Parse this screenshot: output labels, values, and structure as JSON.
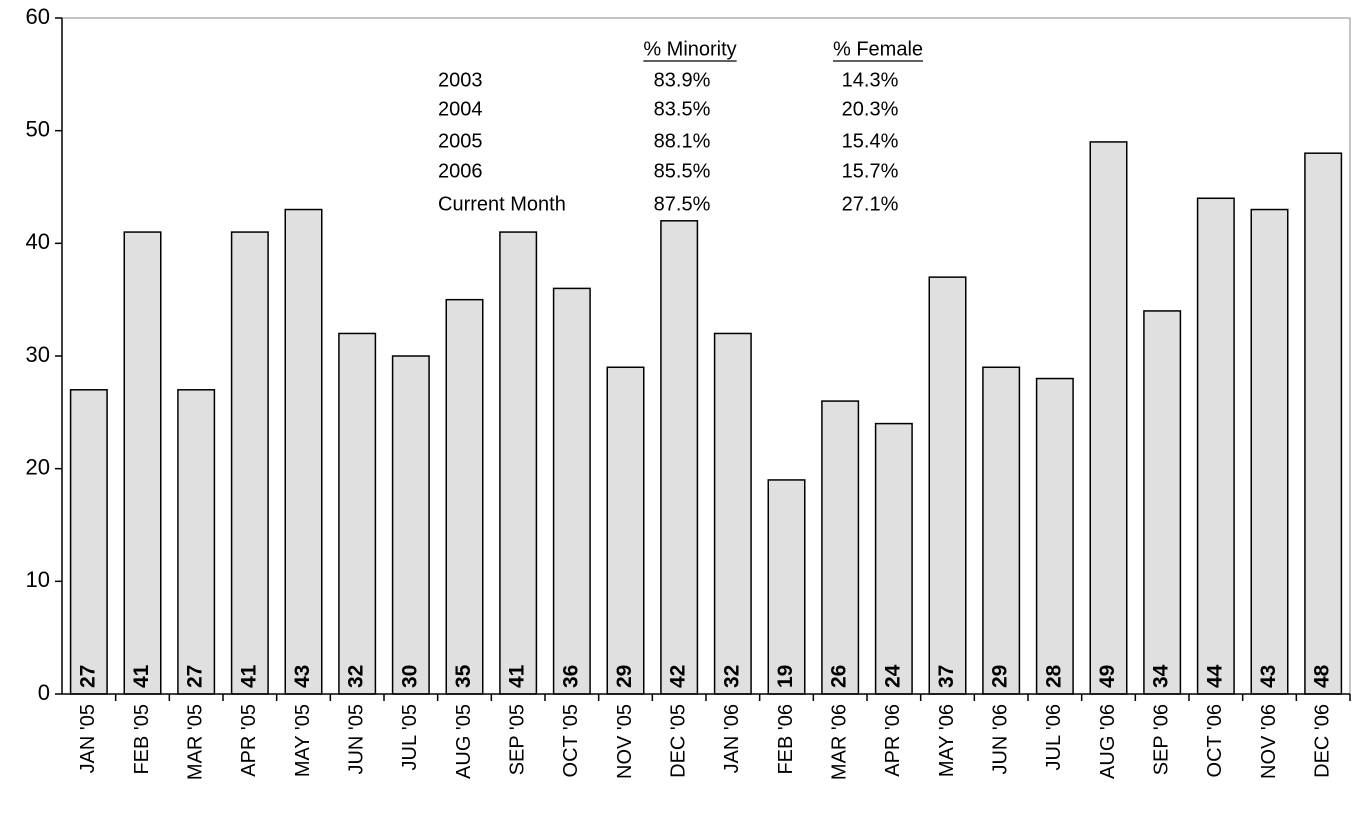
{
  "chart_data": {
    "type": "bar",
    "categories": [
      "JAN '05",
      "FEB '05",
      "MAR '05",
      "APR '05",
      "MAY '05",
      "JUN '05",
      "JUL '05",
      "AUG '05",
      "SEP '05",
      "OCT '05",
      "NOV '05",
      "DEC '05",
      "JAN '06",
      "FEB '06",
      "MAR '06",
      "APR '06",
      "MAY '06",
      "JUN '06",
      "JUL '06",
      "AUG '06",
      "SEP '06",
      "OCT '06",
      "NOV '06",
      "DEC '06"
    ],
    "values": [
      27,
      41,
      27,
      41,
      43,
      32,
      30,
      35,
      41,
      36,
      29,
      42,
      32,
      19,
      26,
      24,
      37,
      29,
      28,
      49,
      34,
      44,
      43,
      48
    ],
    "color": "#e0e0e0",
    "ylim": [
      0,
      60
    ],
    "yticks": [
      0,
      10,
      20,
      30,
      40,
      50,
      60
    ],
    "grid": false,
    "table": {
      "headers": [
        "% Minority",
        "% Female"
      ],
      "rows": [
        [
          "2003",
          "83.9%",
          "14.3%"
        ],
        [
          "2004",
          "83.5%",
          "20.3%"
        ],
        [
          "2005",
          "88.1%",
          "15.4%"
        ],
        [
          "2006",
          "85.5%",
          "15.7%"
        ],
        [
          "Current Month",
          "87.5%",
          "27.1%"
        ]
      ]
    }
  }
}
